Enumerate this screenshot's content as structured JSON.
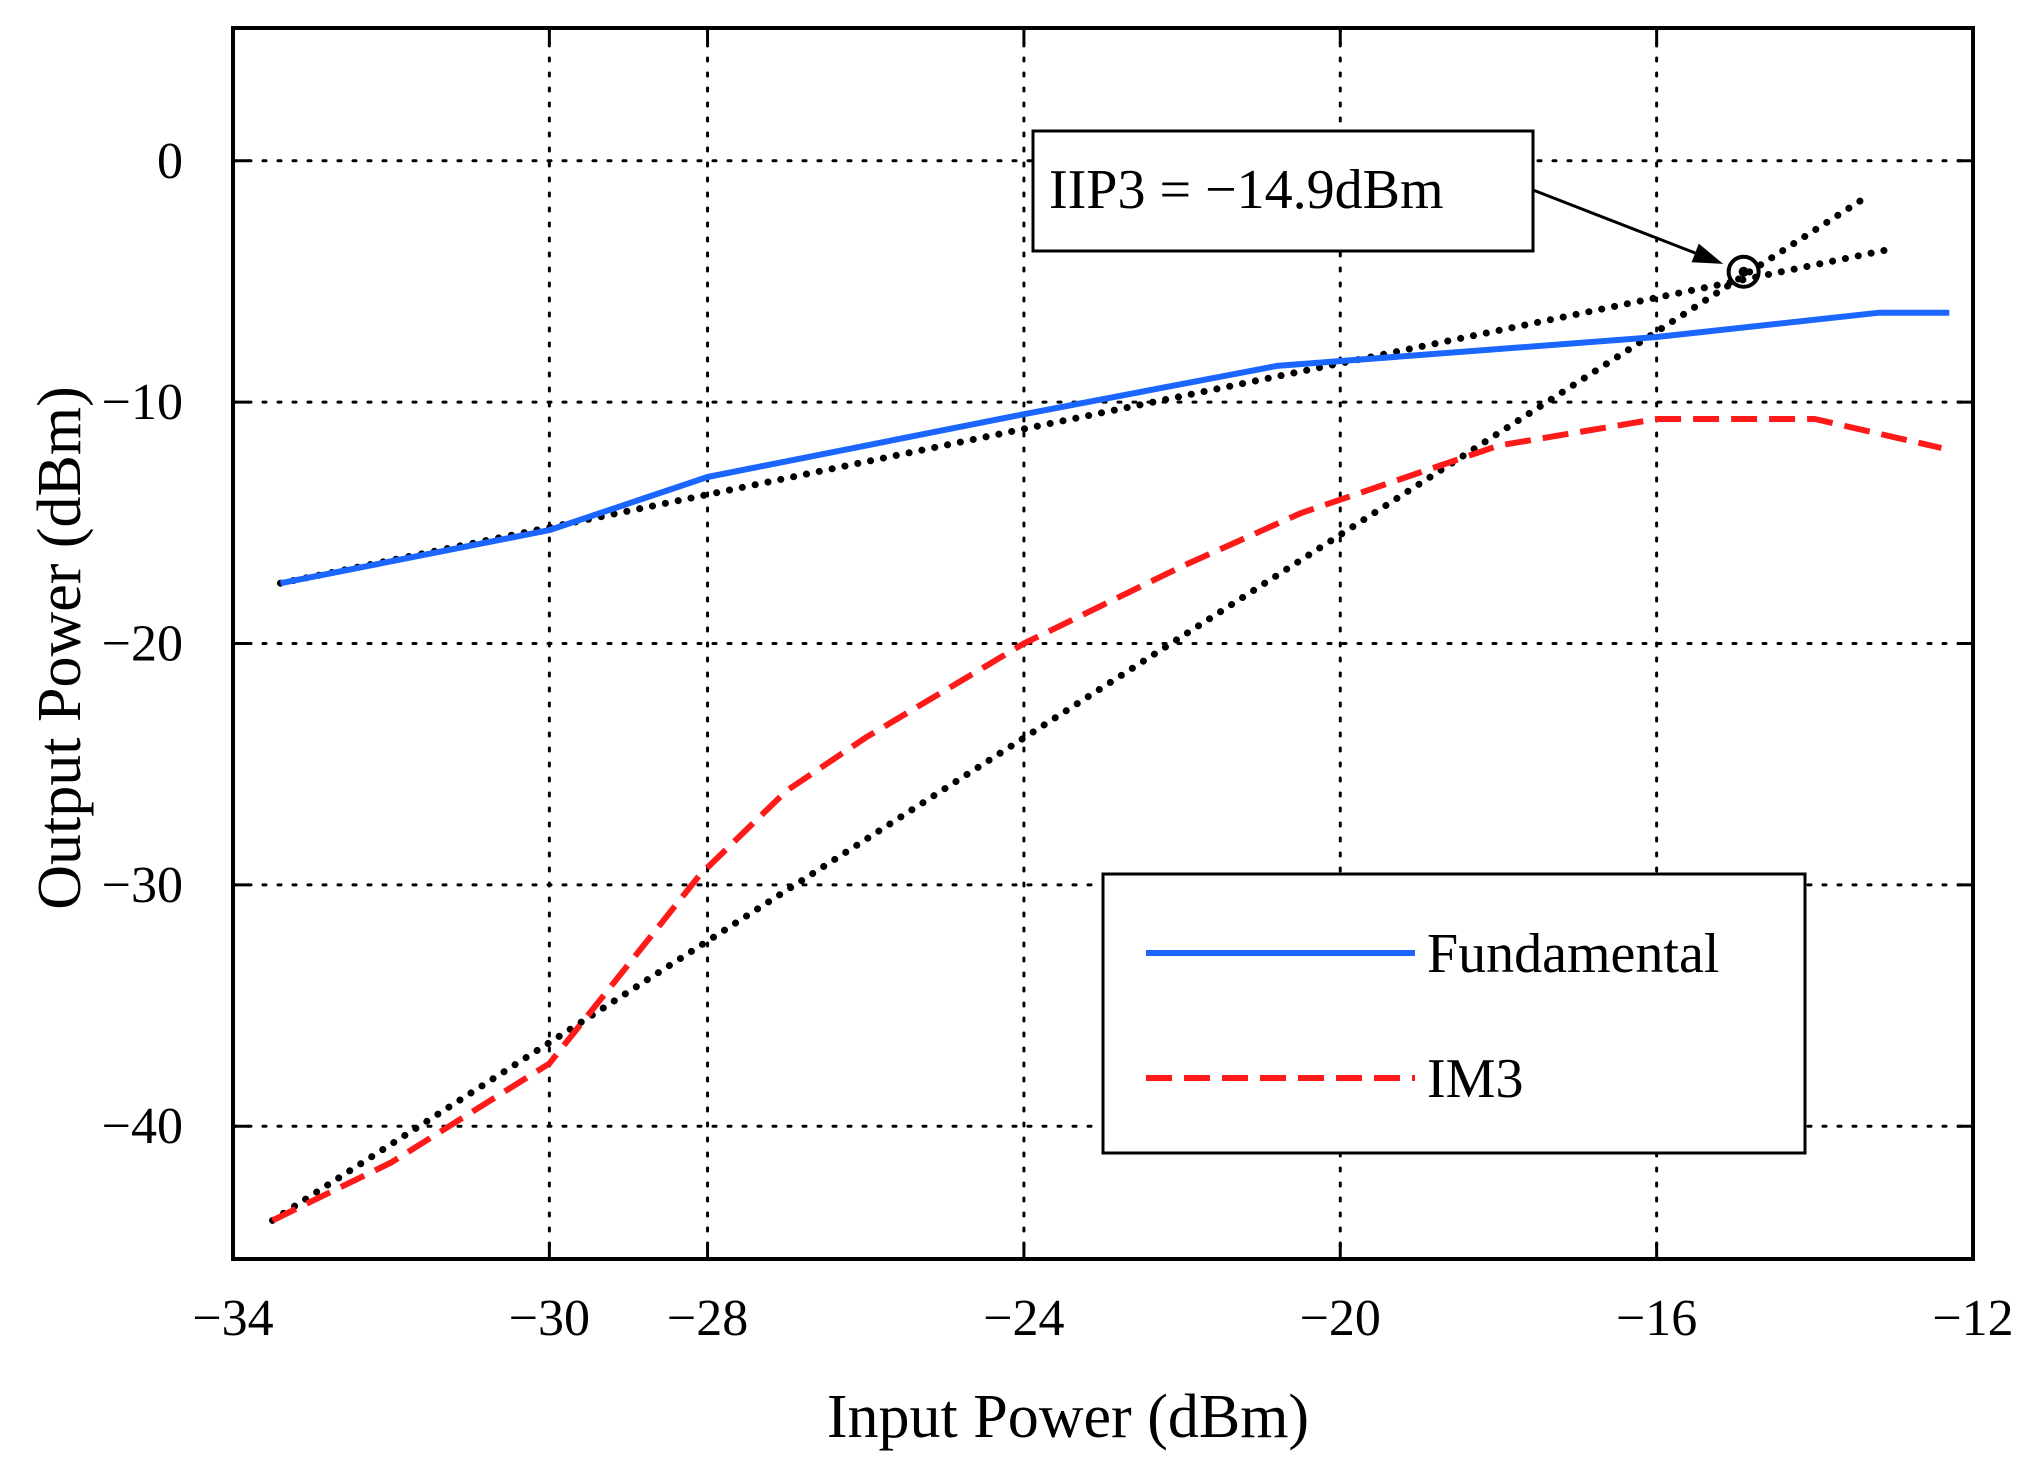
{
  "chart_data": {
    "type": "line",
    "xlabel": "Input Power (dBm)",
    "ylabel": "Output Power (dBm)",
    "xlim": [
      -34,
      -12
    ],
    "ylim": [
      -45.5,
      5.5
    ],
    "grid": true,
    "legend_position": "bottom-right",
    "xticks": [
      {
        "value": -34,
        "label": "−34"
      },
      {
        "value": -30,
        "label": "−30"
      },
      {
        "value": -28,
        "label": "−28"
      },
      {
        "value": -24,
        "label": "−24"
      },
      {
        "value": -20,
        "label": "−20"
      },
      {
        "value": -16,
        "label": "−16"
      },
      {
        "value": -12,
        "label": "−12"
      }
    ],
    "yticks": [
      {
        "value": 0,
        "label": "0"
      },
      {
        "value": -10,
        "label": "−10"
      },
      {
        "value": -20,
        "label": "−20"
      },
      {
        "value": -30,
        "label": "−30"
      },
      {
        "value": -40,
        "label": "−40"
      }
    ],
    "series": [
      {
        "name": "Fundamental",
        "style": "solid",
        "color": "#1a66ff",
        "points": [
          [
            -33.4,
            -17.5
          ],
          [
            -30,
            -15.3
          ],
          [
            -28,
            -13.1
          ],
          [
            -24,
            -10.5
          ],
          [
            -20.8,
            -8.5
          ],
          [
            -16,
            -7.3
          ],
          [
            -13.2,
            -6.3
          ],
          [
            -12.3,
            -6.3
          ]
        ]
      },
      {
        "name": "IM3",
        "style": "dashed",
        "color": "#ff1a1a",
        "points": [
          [
            -33.5,
            -43.9
          ],
          [
            -32,
            -41.5
          ],
          [
            -30,
            -37.4
          ],
          [
            -28.1,
            -29.6
          ],
          [
            -27,
            -26.1
          ],
          [
            -26,
            -23.9
          ],
          [
            -24,
            -20.0
          ],
          [
            -22,
            -16.8
          ],
          [
            -20.5,
            -14.6
          ],
          [
            -18,
            -11.8
          ],
          [
            -16,
            -10.7
          ],
          [
            -14,
            -10.7
          ],
          [
            -12.4,
            -11.9
          ]
        ]
      }
    ],
    "extrapolations": [
      {
        "name": "fundamental-extrapolation",
        "style": "dotted",
        "color": "#000000",
        "points": [
          [
            -33.4,
            -17.5
          ],
          [
            -13.1,
            -3.7
          ]
        ]
      },
      {
        "name": "im3-extrapolation",
        "style": "dotted",
        "color": "#000000",
        "points": [
          [
            -33.5,
            -43.9
          ],
          [
            -13.3,
            -1.4
          ]
        ]
      }
    ],
    "annotation": {
      "text": "IIP3 = −14.9dBm",
      "point": [
        -14.9,
        -4.6
      ]
    }
  }
}
